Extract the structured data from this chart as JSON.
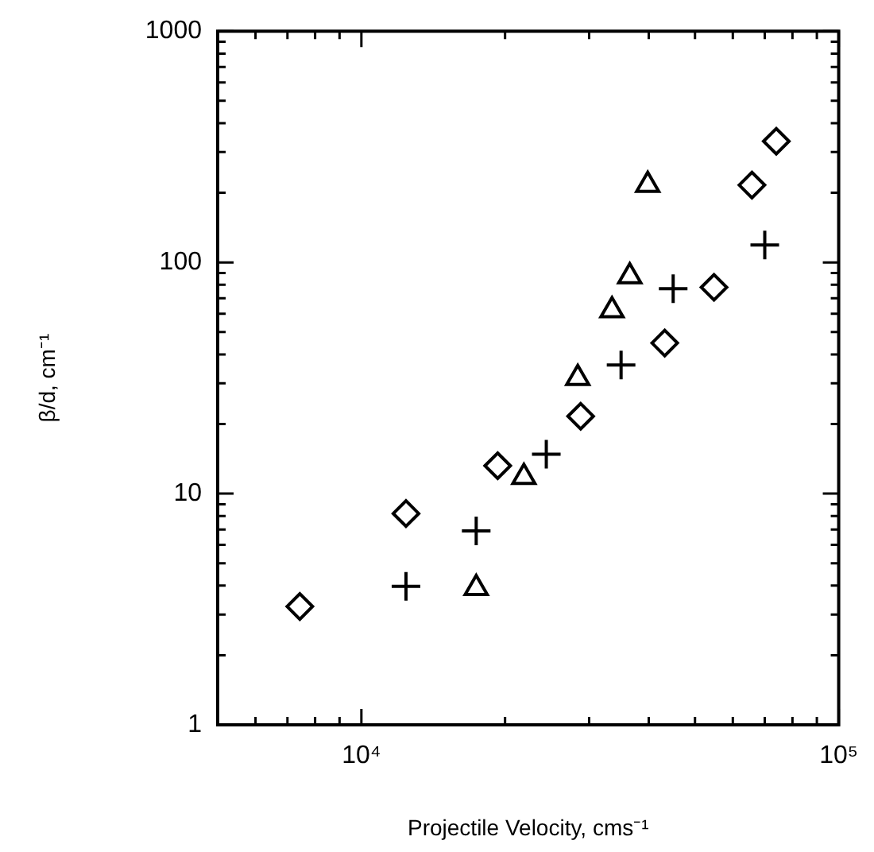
{
  "chart_data": {
    "type": "scatter",
    "xlabel": "Projectile Velocity, cms⁻¹",
    "ylabel": "β/d, cm⁻¹",
    "log": "xy",
    "grid": false,
    "legend": false,
    "xlim": [
      5000,
      100000
    ],
    "ylim": [
      1,
      1000
    ],
    "xticks": [
      {
        "value": 5000,
        "label": null
      },
      {
        "value": 6000,
        "label": null
      },
      {
        "value": 7000,
        "label": null
      },
      {
        "value": 8000,
        "label": null
      },
      {
        "value": 9000,
        "label": null
      },
      {
        "value": 10000,
        "label": "10⁴"
      },
      {
        "value": 20000,
        "label": null
      },
      {
        "value": 30000,
        "label": null
      },
      {
        "value": 40000,
        "label": null
      },
      {
        "value": 50000,
        "label": null
      },
      {
        "value": 60000,
        "label": null
      },
      {
        "value": 70000,
        "label": null
      },
      {
        "value": 80000,
        "label": null
      },
      {
        "value": 90000,
        "label": null
      },
      {
        "value": 100000,
        "label": "10⁵"
      }
    ],
    "yticks": [
      1,
      {
        "value": 2,
        "label": null
      },
      {
        "value": 3,
        "label": null
      },
      {
        "value": 4,
        "label": null
      },
      {
        "value": 5,
        "label": null
      },
      {
        "value": 6,
        "label": null
      },
      {
        "value": 7,
        "label": null
      },
      {
        "value": 8,
        "label": null
      },
      {
        "value": 9,
        "label": null
      },
      10,
      {
        "value": 20,
        "label": null
      },
      {
        "value": 30,
        "label": null
      },
      {
        "value": 40,
        "label": null
      },
      {
        "value": 50,
        "label": null
      },
      {
        "value": 60,
        "label": null
      },
      {
        "value": 70,
        "label": null
      },
      {
        "value": 80,
        "label": null
      },
      {
        "value": 90,
        "label": null
      },
      100,
      {
        "value": 200,
        "label": null
      },
      {
        "value": 300,
        "label": null
      },
      {
        "value": 400,
        "label": null
      },
      {
        "value": 500,
        "label": null
      },
      {
        "value": 600,
        "label": null
      },
      {
        "value": 700,
        "label": null
      },
      {
        "value": 800,
        "label": null
      },
      {
        "value": 900,
        "label": null
      },
      1000
    ],
    "series": [
      {
        "marker": "diamond",
        "color": "#000000",
        "x": [
          7430,
          12400,
          19300,
          28800,
          43200,
          54800,
          65800,
          74000
        ],
        "values": [
          3.25,
          8.2,
          13.2,
          21.6,
          44.8,
          78,
          216,
          334
        ]
      },
      {
        "marker": "cross",
        "color": "#000000",
        "x": [
          12400,
          17400,
          24400,
          35000,
          45000,
          70000
        ],
        "values": [
          3.97,
          6.9,
          14.8,
          36,
          77,
          119
        ]
      },
      {
        "marker": "triangle",
        "color": "#000000",
        "x": [
          17400,
          21900,
          28400,
          33500,
          36500,
          39800
        ],
        "values": [
          3.9,
          11.8,
          31.6,
          62,
          87,
          216
        ]
      }
    ]
  }
}
